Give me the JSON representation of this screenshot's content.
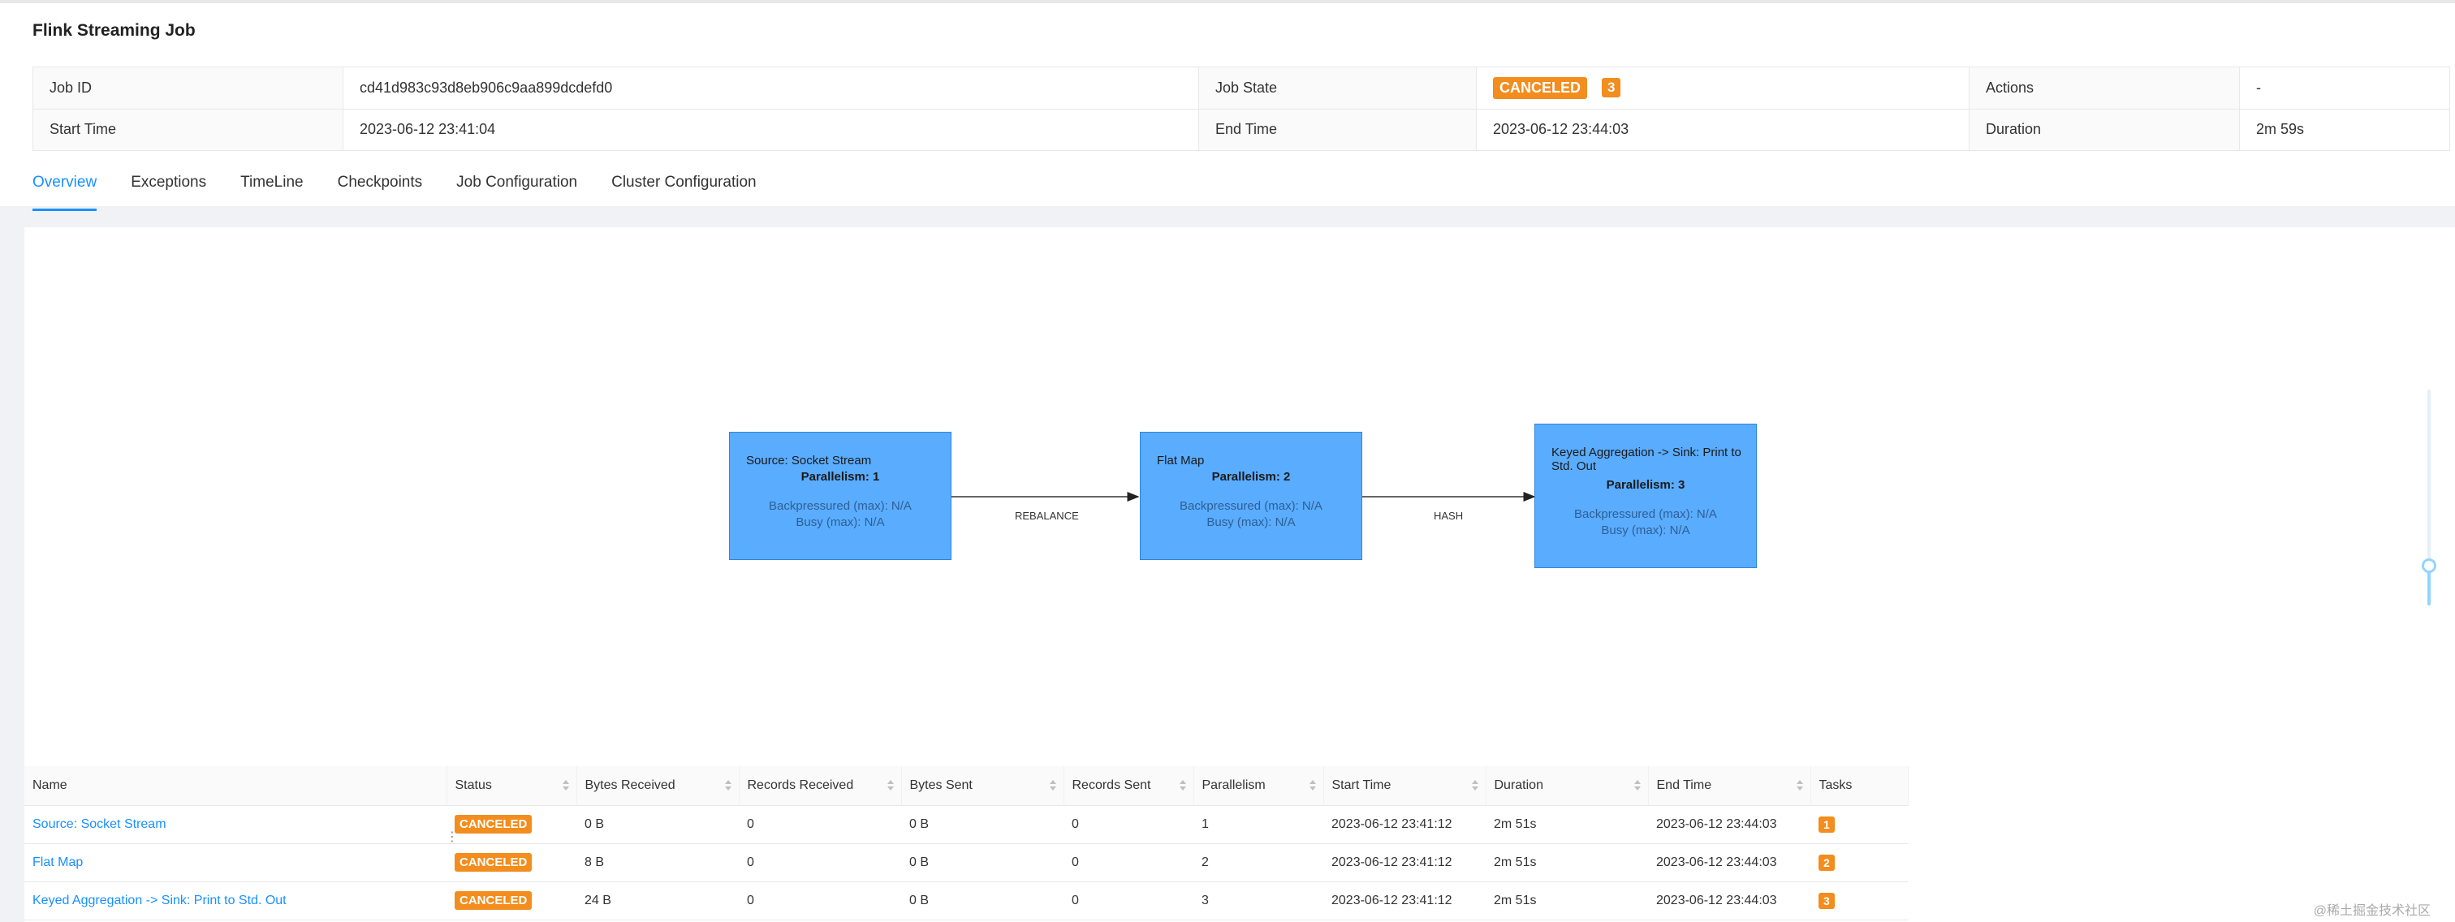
{
  "job": {
    "title": "Flink Streaming Job",
    "fields": {
      "job_id_label": "Job ID",
      "job_id": "cd41d983c93d8eb906c9aa899dcdefd0",
      "job_state_label": "Job State",
      "job_state": "CANCELED",
      "job_state_count": "3",
      "actions_label": "Actions",
      "actions": "-",
      "start_time_label": "Start Time",
      "start_time": "2023-06-12 23:41:04",
      "end_time_label": "End Time",
      "end_time": "2023-06-12 23:44:03",
      "duration_label": "Duration",
      "duration": "2m 59s"
    }
  },
  "tabs": [
    {
      "label": "Overview",
      "active": true
    },
    {
      "label": "Exceptions"
    },
    {
      "label": "TimeLine"
    },
    {
      "label": "Checkpoints"
    },
    {
      "label": "Job Configuration"
    },
    {
      "label": "Cluster Configuration"
    }
  ],
  "graph": {
    "nodes": [
      {
        "name": "Source: Socket Stream",
        "parallelism": "Parallelism: 1",
        "backpressured": "Backpressured (max): N/A",
        "busy": "Busy (max): N/A"
      },
      {
        "name": "Flat Map",
        "parallelism": "Parallelism: 2",
        "backpressured": "Backpressured (max): N/A",
        "busy": "Busy (max): N/A"
      },
      {
        "name": "Keyed Aggregation -> Sink: Print to Std. Out",
        "parallelism": "Parallelism: 3",
        "backpressured": "Backpressured (max): N/A",
        "busy": "Busy (max): N/A"
      }
    ],
    "edges": [
      {
        "label": "REBALANCE"
      },
      {
        "label": "HASH"
      }
    ],
    "colors": {
      "node_fill": "#5aacff",
      "node_border": "#2a86e0"
    }
  },
  "vertex_table": {
    "headers": [
      "Name",
      "Status",
      "Bytes Received",
      "Records Received",
      "Bytes Sent",
      "Records Sent",
      "Parallelism",
      "Start Time",
      "Duration",
      "End Time",
      "Tasks"
    ],
    "rows": [
      {
        "name": "Source: Socket Stream",
        "status": "CANCELED",
        "bytes_received": "0 B",
        "records_received": "0",
        "bytes_sent": "0 B",
        "records_sent": "0",
        "parallelism": "1",
        "start_time": "2023-06-12 23:41:12",
        "duration": "2m 51s",
        "end_time": "2023-06-12 23:44:03",
        "tasks": "1"
      },
      {
        "name": "Flat Map",
        "status": "CANCELED",
        "bytes_received": "8 B",
        "records_received": "0",
        "bytes_sent": "0 B",
        "records_sent": "0",
        "parallelism": "2",
        "start_time": "2023-06-12 23:41:12",
        "duration": "2m 51s",
        "end_time": "2023-06-12 23:44:03",
        "tasks": "2"
      },
      {
        "name": "Keyed Aggregation -> Sink: Print to Std. Out",
        "status": "CANCELED",
        "bytes_received": "24 B",
        "records_received": "0",
        "bytes_sent": "0 B",
        "records_sent": "0",
        "parallelism": "3",
        "start_time": "2023-06-12 23:41:12",
        "duration": "2m 51s",
        "end_time": "2023-06-12 23:44:03",
        "tasks": "3"
      }
    ]
  },
  "colors": {
    "accent": "#1890ff",
    "canceled": "#f28d1e"
  },
  "watermark": "@稀土掘金技术社区"
}
